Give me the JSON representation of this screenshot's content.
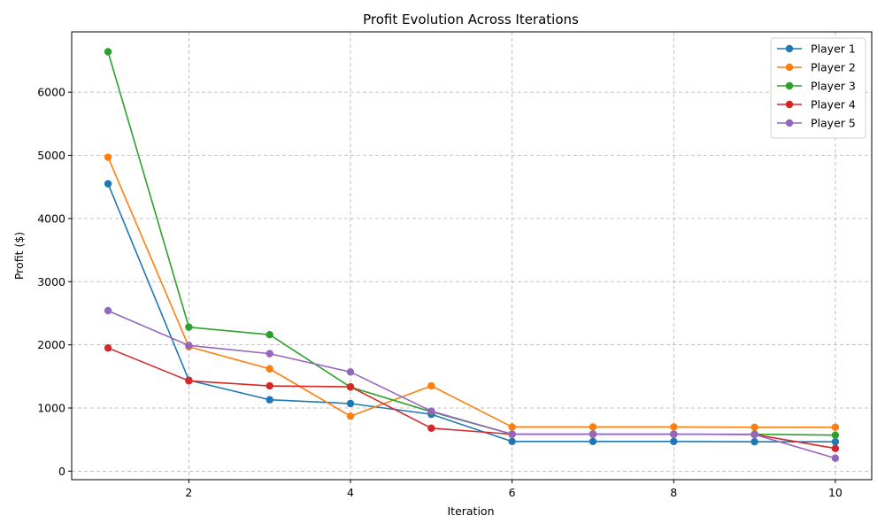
{
  "chart_data": {
    "type": "line",
    "title": "Profit Evolution Across Iterations",
    "xlabel": "Iteration",
    "ylabel": "Profit ($)",
    "xlim": [
      0.55,
      10.45
    ],
    "ylim": [
      -135,
      6955
    ],
    "x_ticks": [
      2,
      4,
      6,
      8,
      10
    ],
    "y_ticks": [
      0,
      1000,
      2000,
      3000,
      4000,
      5000,
      6000
    ],
    "grid": true,
    "grid_style": "dashed",
    "legend_position": "top-right",
    "x": [
      1,
      2,
      3,
      4,
      5,
      6,
      7,
      8,
      9,
      10
    ],
    "series": [
      {
        "name": "Player 1",
        "color": "#1f77b4",
        "marker": "circle",
        "values": [
          4550,
          1440,
          1130,
          1070,
          900,
          470,
          470,
          470,
          465,
          465
        ]
      },
      {
        "name": "Player 2",
        "color": "#ff7f0e",
        "marker": "circle",
        "values": [
          4970,
          1970,
          1620,
          870,
          1350,
          700,
          700,
          700,
          695,
          695
        ]
      },
      {
        "name": "Player 3",
        "color": "#2ca02c",
        "marker": "circle",
        "values": [
          6640,
          2280,
          2160,
          1330,
          940,
          585,
          585,
          585,
          585,
          570
        ]
      },
      {
        "name": "Player 4",
        "color": "#d62728",
        "marker": "circle",
        "values": [
          1950,
          1430,
          1350,
          1335,
          680,
          585,
          585,
          585,
          580,
          360
        ]
      },
      {
        "name": "Player 5",
        "color": "#9467bd",
        "marker": "circle",
        "values": [
          2540,
          1990,
          1860,
          1570,
          950,
          585,
          585,
          585,
          580,
          205
        ]
      }
    ]
  }
}
